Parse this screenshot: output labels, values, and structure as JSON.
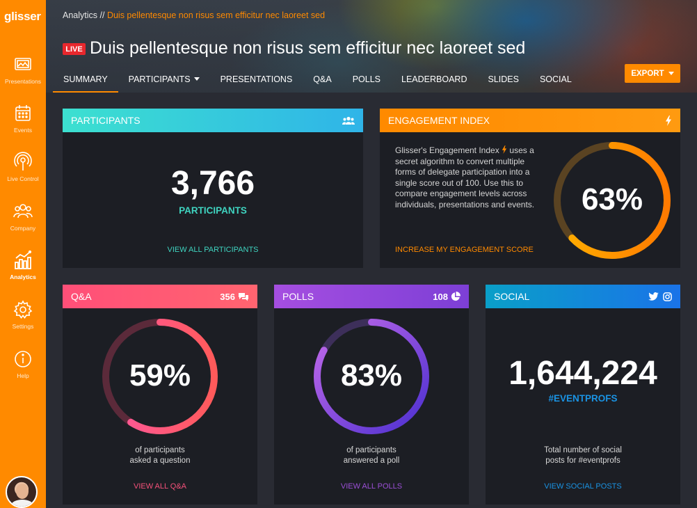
{
  "app": {
    "logo": "glisser"
  },
  "sidebar": {
    "items": [
      {
        "label": "Presentations",
        "icon": "presentations-icon",
        "active": false
      },
      {
        "label": "Events",
        "icon": "calendar-icon",
        "active": false
      },
      {
        "label": "Live Control",
        "icon": "live-control-icon",
        "active": false
      },
      {
        "label": "Company",
        "icon": "company-icon",
        "active": false
      },
      {
        "label": "Analytics",
        "icon": "analytics-icon",
        "active": true
      },
      {
        "label": "Settings",
        "icon": "gear-icon",
        "active": false
      },
      {
        "label": "Help",
        "icon": "info-icon",
        "active": false
      }
    ]
  },
  "header": {
    "breadcrumb": {
      "root": "Analytics",
      "separator": "//",
      "current": "Duis pellentesque non risus sem efficitur nec laoreet sed"
    },
    "live_badge": "LIVE",
    "title": "Duis pellentesque non risus sem efficitur nec laoreet sed",
    "tabs": [
      {
        "label": "SUMMARY",
        "active": true
      },
      {
        "label": "PARTICIPANTS",
        "dropdown": true
      },
      {
        "label": "PRESENTATIONS"
      },
      {
        "label": "Q&A"
      },
      {
        "label": "POLLS"
      },
      {
        "label": "LEADERBOARD"
      },
      {
        "label": "SLIDES"
      },
      {
        "label": "SOCIAL"
      }
    ],
    "export_label": "EXPORT"
  },
  "participants": {
    "title": "PARTICIPANTS",
    "count": "3,766",
    "label": "PARTICIPANTS",
    "link": "VIEW ALL PARTICIPANTS"
  },
  "engagement": {
    "title": "ENGAGEMENT INDEX",
    "description_before": "Glisser's Engagement Index",
    "description_after": "uses a secret algorithm to convert multiple forms of delegate participation into a single score out of 100. Use this to compare engagement levels across individuals, presentations and events.",
    "score": "63%",
    "score_fraction": 0.63,
    "link": "INCREASE MY ENGAGEMENT SCORE"
  },
  "qa": {
    "title": "Q&A",
    "count": "356",
    "percent": "59%",
    "fraction": 0.59,
    "caption_line1": "of participants",
    "caption_line2": "asked a question",
    "link": "VIEW ALL Q&A"
  },
  "polls": {
    "title": "POLLS",
    "count": "108",
    "percent": "83%",
    "fraction": 0.83,
    "caption_line1": "of participants",
    "caption_line2": "answered a poll",
    "link": "VIEW ALL POLLS"
  },
  "social": {
    "title": "SOCIAL",
    "count": "1,644,224",
    "hashtag": "#EVENTPROFS",
    "caption_line1": "Total number of social",
    "caption_line2": "posts for #eventprofs",
    "link": "VIEW SOCIAL POSTS"
  },
  "colors": {
    "brand": "#ff8a00",
    "participants_accent": "#3fd4c0",
    "qa_accent": "#f4517a",
    "polls_accent": "#9b4fd6",
    "social_accent": "#1a93e3",
    "live": "#e8272d"
  }
}
